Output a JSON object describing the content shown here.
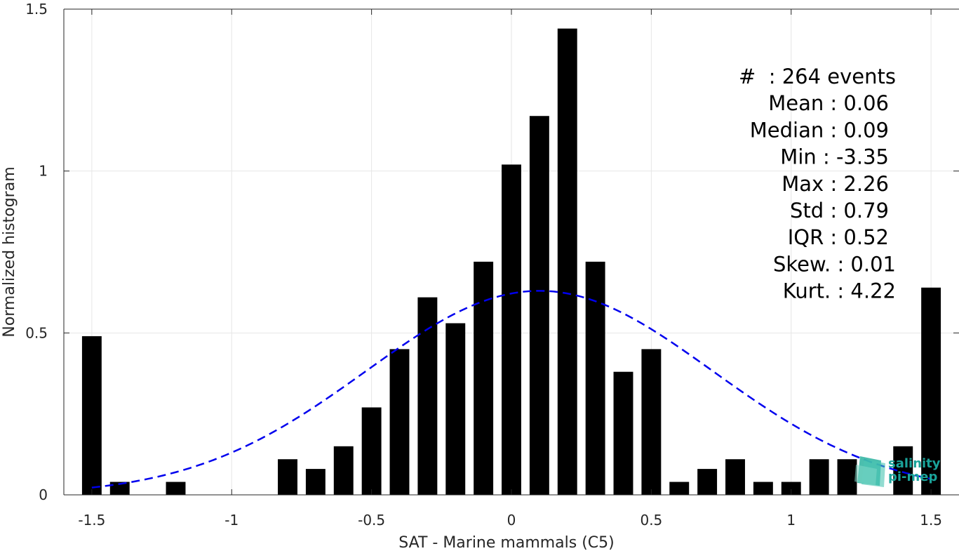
{
  "chart_data": {
    "type": "bar",
    "xlabel": "SAT - Marine mammals (C5)",
    "ylabel": "Normalized histogram",
    "xlim": [
      -1.6,
      1.6
    ],
    "ylim": [
      0,
      1.5
    ],
    "xticks": [
      -1.5,
      -1,
      -0.5,
      0,
      0.5,
      1,
      1.5
    ],
    "xtick_labels": [
      "-1.5",
      "-1",
      "-0.5",
      "0",
      "0.5",
      "1",
      "1.5"
    ],
    "yticks": [
      0,
      0.5,
      1,
      1.5
    ],
    "ytick_labels": [
      "0",
      "0.5",
      "1",
      "1.5"
    ],
    "grid": true,
    "bar_width": 0.07,
    "bar_color": "#000000",
    "x": [
      -1.5,
      -1.4,
      -1.3,
      -1.2,
      -1.1,
      -1.0,
      -0.9,
      -0.8,
      -0.7,
      -0.6,
      -0.5,
      -0.4,
      -0.3,
      -0.2,
      -0.1,
      0.0,
      0.1,
      0.2,
      0.3,
      0.4,
      0.5,
      0.6,
      0.7,
      0.8,
      0.9,
      1.0,
      1.1,
      1.2,
      1.3,
      1.4,
      1.5
    ],
    "values": [
      0.49,
      0.04,
      0,
      0.04,
      0,
      0,
      0,
      0.11,
      0.08,
      0.15,
      0.27,
      0.45,
      0.61,
      0.53,
      0.72,
      1.02,
      1.17,
      1.44,
      0.72,
      0.38,
      0.45,
      0.04,
      0.08,
      0.11,
      0.04,
      0.04,
      0.11,
      0.11,
      0,
      0.15,
      0.64
    ],
    "fit": {
      "type": "normal",
      "mean": 0.1,
      "peak": 0.63,
      "std": 0.62,
      "x_range": [
        -1.5,
        1.5
      ],
      "color": "#0000ee",
      "style": "dashed"
    },
    "stats": [
      "#  : 264 events",
      "Mean : 0.06",
      "Median : 0.09",
      "Min : -3.35",
      "Max : 2.26",
      "Std : 0.79",
      "IQR : 0.52",
      "Skew. : 0.01",
      "Kurt. : 4.22"
    ]
  },
  "logo": {
    "line1": "salinity",
    "line2": "pi-mep",
    "color": "#1aa39a"
  }
}
